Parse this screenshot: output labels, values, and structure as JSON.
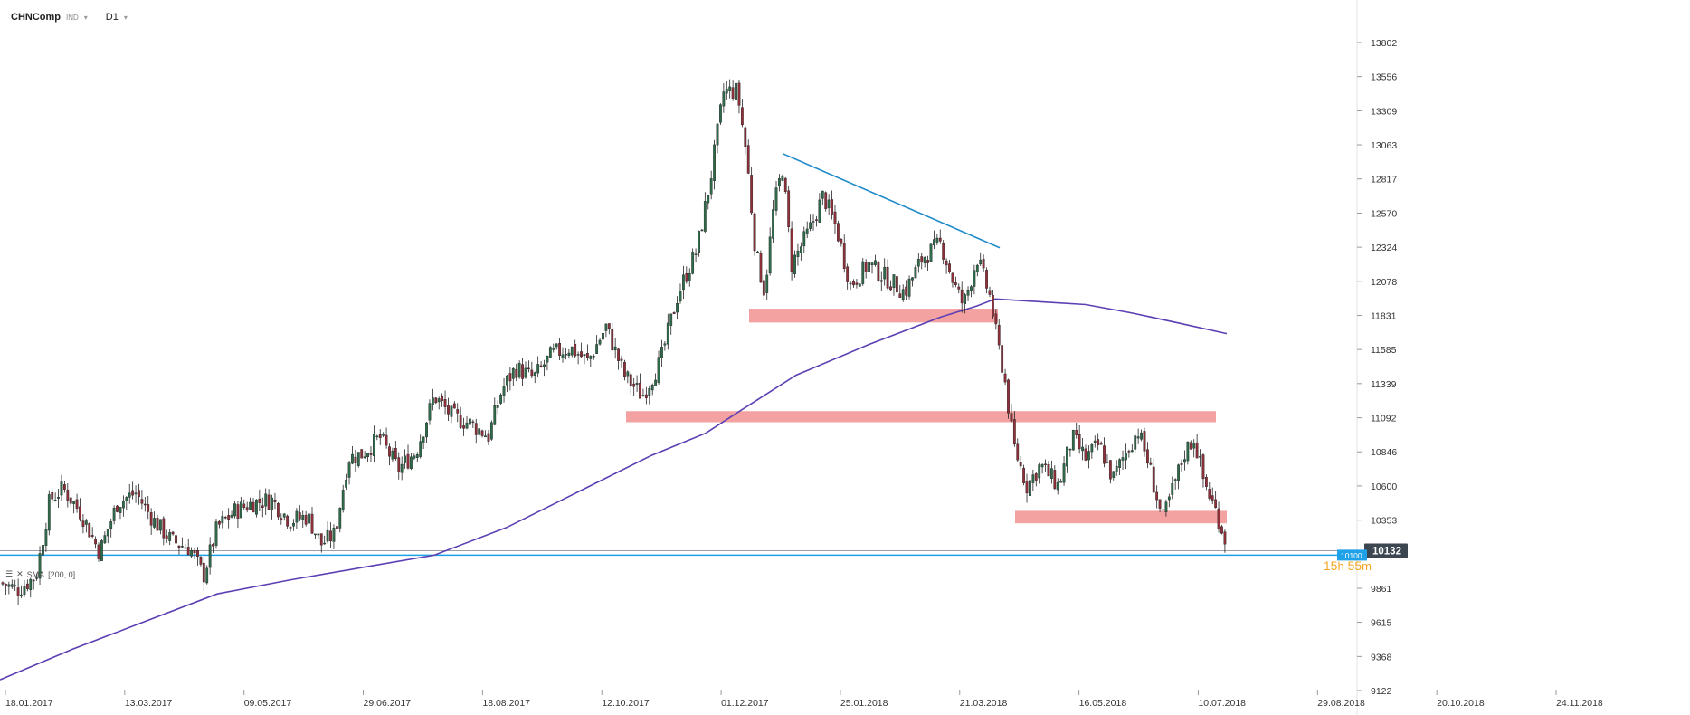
{
  "header": {
    "symbol": "CHNComp",
    "type": "IND",
    "timeframe": "D1"
  },
  "indicator": {
    "label": "SMA",
    "params": "[200, 0]",
    "color": "#5b3fb3"
  },
  "timer": {
    "hours": "15",
    "h": "h",
    "minutes": "55",
    "m": "m"
  },
  "price": {
    "current": "10132",
    "current_color": "#3b4650",
    "support_label": "10100",
    "support_color": "#1ea1e8"
  },
  "colors": {
    "bull": "#2e6b4a",
    "bear": "#8f2f3a",
    "zone": "#f08a8a",
    "trendline": "#1f8bc9",
    "sma": "#5b3fb3"
  },
  "chart_data": {
    "type": "candlestick",
    "y_ticks": [
      "13802",
      "13556",
      "13309",
      "13063",
      "12817",
      "12570",
      "12324",
      "12078",
      "11831",
      "11585",
      "11339",
      "11092",
      "10846",
      "10600",
      "10353",
      "10132",
      "9861",
      "9615",
      "9368",
      "9122"
    ],
    "x_ticks": [
      "18.01.2017",
      "13.03.2017",
      "09.05.2017",
      "29.06.2017",
      "18.08.2017",
      "12.10.2017",
      "01.12.2017",
      "25.01.2018",
      "21.03.2018",
      "16.05.2018",
      "10.07.2018",
      "29.08.2018",
      "20.10.2018",
      "24.11.2018"
    ],
    "ylim": [
      9122,
      13802
    ],
    "close_path": [
      [
        0,
        9900
      ],
      [
        20,
        9850
      ],
      [
        40,
        9950
      ],
      [
        55,
        10500
      ],
      [
        70,
        10580
      ],
      [
        90,
        10400
      ],
      [
        110,
        10120
      ],
      [
        130,
        10480
      ],
      [
        150,
        10550
      ],
      [
        170,
        10350
      ],
      [
        190,
        10200
      ],
      [
        210,
        10150
      ],
      [
        225,
        9950
      ],
      [
        240,
        10300
      ],
      [
        260,
        10420
      ],
      [
        280,
        10480
      ],
      [
        300,
        10500
      ],
      [
        320,
        10350
      ],
      [
        340,
        10380
      ],
      [
        355,
        10180
      ],
      [
        370,
        10250
      ],
      [
        385,
        10800
      ],
      [
        400,
        10830
      ],
      [
        420,
        10950
      ],
      [
        440,
        10720
      ],
      [
        460,
        10850
      ],
      [
        480,
        11250
      ],
      [
        500,
        11100
      ],
      [
        520,
        11050
      ],
      [
        540,
        10960
      ],
      [
        555,
        11300
      ],
      [
        570,
        11450
      ],
      [
        590,
        11380
      ],
      [
        610,
        11550
      ],
      [
        630,
        11600
      ],
      [
        650,
        11500
      ],
      [
        670,
        11750
      ],
      [
        690,
        11400
      ],
      [
        710,
        11250
      ],
      [
        730,
        11500
      ],
      [
        750,
        12000
      ],
      [
        770,
        12300
      ],
      [
        785,
        12800
      ],
      [
        800,
        13450
      ],
      [
        815,
        13450
      ],
      [
        825,
        13000
      ],
      [
        835,
        12300
      ],
      [
        845,
        12000
      ],
      [
        855,
        12600
      ],
      [
        865,
        12900
      ],
      [
        875,
        12200
      ],
      [
        895,
        12450
      ],
      [
        910,
        12700
      ],
      [
        925,
        12450
      ],
      [
        940,
        12050
      ],
      [
        960,
        12200
      ],
      [
        980,
        12100
      ],
      [
        1000,
        12000
      ],
      [
        1020,
        12250
      ],
      [
        1040,
        12350
      ],
      [
        1055,
        12050
      ],
      [
        1065,
        11900
      ],
      [
        1080,
        12250
      ],
      [
        1095,
        11950
      ],
      [
        1102,
        11650
      ],
      [
        1110,
        11400
      ],
      [
        1120,
        10900
      ],
      [
        1135,
        10600
      ],
      [
        1150,
        10750
      ],
      [
        1170,
        10600
      ],
      [
        1185,
        10950
      ],
      [
        1200,
        10800
      ],
      [
        1215,
        10900
      ],
      [
        1230,
        10650
      ],
      [
        1245,
        10850
      ],
      [
        1258,
        11000
      ],
      [
        1270,
        10750
      ],
      [
        1285,
        10350
      ],
      [
        1295,
        10550
      ],
      [
        1310,
        10850
      ],
      [
        1320,
        10950
      ],
      [
        1330,
        10650
      ],
      [
        1345,
        10400
      ],
      [
        1356,
        10180
      ]
    ],
    "sma_path": [
      [
        0,
        9200
      ],
      [
        80,
        9420
      ],
      [
        160,
        9620
      ],
      [
        240,
        9820
      ],
      [
        320,
        9920
      ],
      [
        400,
        10010
      ],
      [
        480,
        10100
      ],
      [
        560,
        10300
      ],
      [
        640,
        10560
      ],
      [
        720,
        10820
      ],
      [
        780,
        10980
      ],
      [
        820,
        11150
      ],
      [
        880,
        11400
      ],
      [
        960,
        11620
      ],
      [
        1040,
        11820
      ],
      [
        1080,
        11900
      ],
      [
        1100,
        11950
      ],
      [
        1150,
        11930
      ],
      [
        1200,
        11910
      ],
      [
        1250,
        11850
      ],
      [
        1300,
        11780
      ],
      [
        1356,
        11700
      ]
    ],
    "trendline": [
      [
        865,
        13000
      ],
      [
        1105,
        12320
      ]
    ],
    "zones": [
      {
        "x0": 828,
        "x1": 1103,
        "y0": 11780,
        "y1": 11880
      },
      {
        "x0": 692,
        "x1": 1344,
        "y0": 11060,
        "y1": 11140
      },
      {
        "x0": 1122,
        "x1": 1356,
        "y0": 10330,
        "y1": 10420
      }
    ],
    "hlines": [
      {
        "value": 10132,
        "color": "#9aa0a6"
      },
      {
        "value": 10100,
        "color": "#1ea1e8"
      }
    ]
  }
}
